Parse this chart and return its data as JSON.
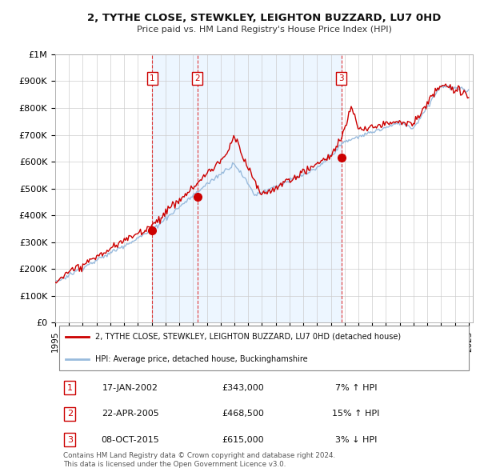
{
  "title_line1": "2, TYTHE CLOSE, STEWKLEY, LEIGHTON BUZZARD, LU7 0HD",
  "title_line2": "Price paid vs. HM Land Registry's House Price Index (HPI)",
  "ylim": [
    0,
    1000000
  ],
  "yticks": [
    0,
    100000,
    200000,
    300000,
    400000,
    500000,
    600000,
    700000,
    800000,
    900000,
    1000000
  ],
  "ytick_labels": [
    "£0",
    "£100K",
    "£200K",
    "£300K",
    "£400K",
    "£500K",
    "£600K",
    "£700K",
    "£800K",
    "£900K",
    "£1M"
  ],
  "xlim_start": 1995.0,
  "xlim_end": 2025.3,
  "xtick_years": [
    1995,
    1996,
    1997,
    1998,
    1999,
    2000,
    2001,
    2002,
    2003,
    2004,
    2005,
    2006,
    2007,
    2008,
    2009,
    2010,
    2011,
    2012,
    2013,
    2014,
    2015,
    2016,
    2017,
    2018,
    2019,
    2020,
    2021,
    2022,
    2023,
    2024,
    2025
  ],
  "sale_color": "#cc0000",
  "hpi_color": "#99bbdd",
  "shade_color": "#ddeeff",
  "dashed_line_color": "#dd2222",
  "grid_color": "#cccccc",
  "background_color": "#ffffff",
  "transactions": [
    {
      "num": 1,
      "date_x": 2002.04,
      "price": 343000
    },
    {
      "num": 2,
      "date_x": 2005.31,
      "price": 468500
    },
    {
      "num": 3,
      "date_x": 2015.77,
      "price": 615000
    }
  ],
  "legend_sale_label": "2, TYTHE CLOSE, STEWKLEY, LEIGHTON BUZZARD, LU7 0HD (detached house)",
  "legend_hpi_label": "HPI: Average price, detached house, Buckinghamshire",
  "table_rows": [
    {
      "num": 1,
      "date": "17-JAN-2002",
      "price": "£343,000",
      "hpi": "7% ↑ HPI"
    },
    {
      "num": 2,
      "date": "22-APR-2005",
      "price": "£468,500",
      "hpi": "15% ↑ HPI"
    },
    {
      "num": 3,
      "date": "08-OCT-2015",
      "price": "£615,000",
      "hpi": "3% ↓ HPI"
    }
  ],
  "footnote": "Contains HM Land Registry data © Crown copyright and database right 2024.\nThis data is licensed under the Open Government Licence v3.0."
}
